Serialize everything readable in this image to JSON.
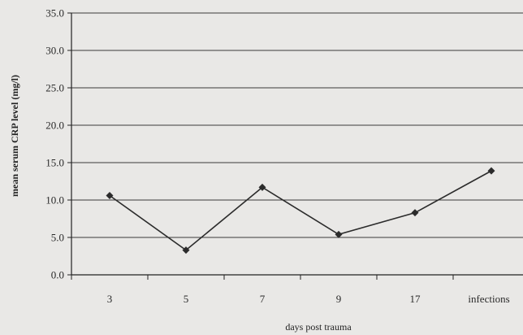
{
  "chart_data": {
    "type": "line",
    "title": "",
    "xlabel": "days post trauma",
    "ylabel": "mean serum CRP level (mg/l)",
    "categories": [
      "3",
      "5",
      "7",
      "9",
      "17",
      "infections"
    ],
    "series": [
      {
        "values": [
          10.6,
          3.3,
          11.7,
          5.4,
          8.3,
          13.9
        ]
      }
    ],
    "ylim": [
      0,
      35
    ],
    "y_ticks": [
      "0.0",
      "5.0",
      "10.0",
      "15.0",
      "20.0",
      "25.0",
      "30.0",
      "35.0"
    ],
    "grid": true,
    "legend": "none",
    "colors": {
      "line": "#2b2b2b",
      "grid": "#3a3a3a",
      "background": "#e9e8e6"
    }
  }
}
